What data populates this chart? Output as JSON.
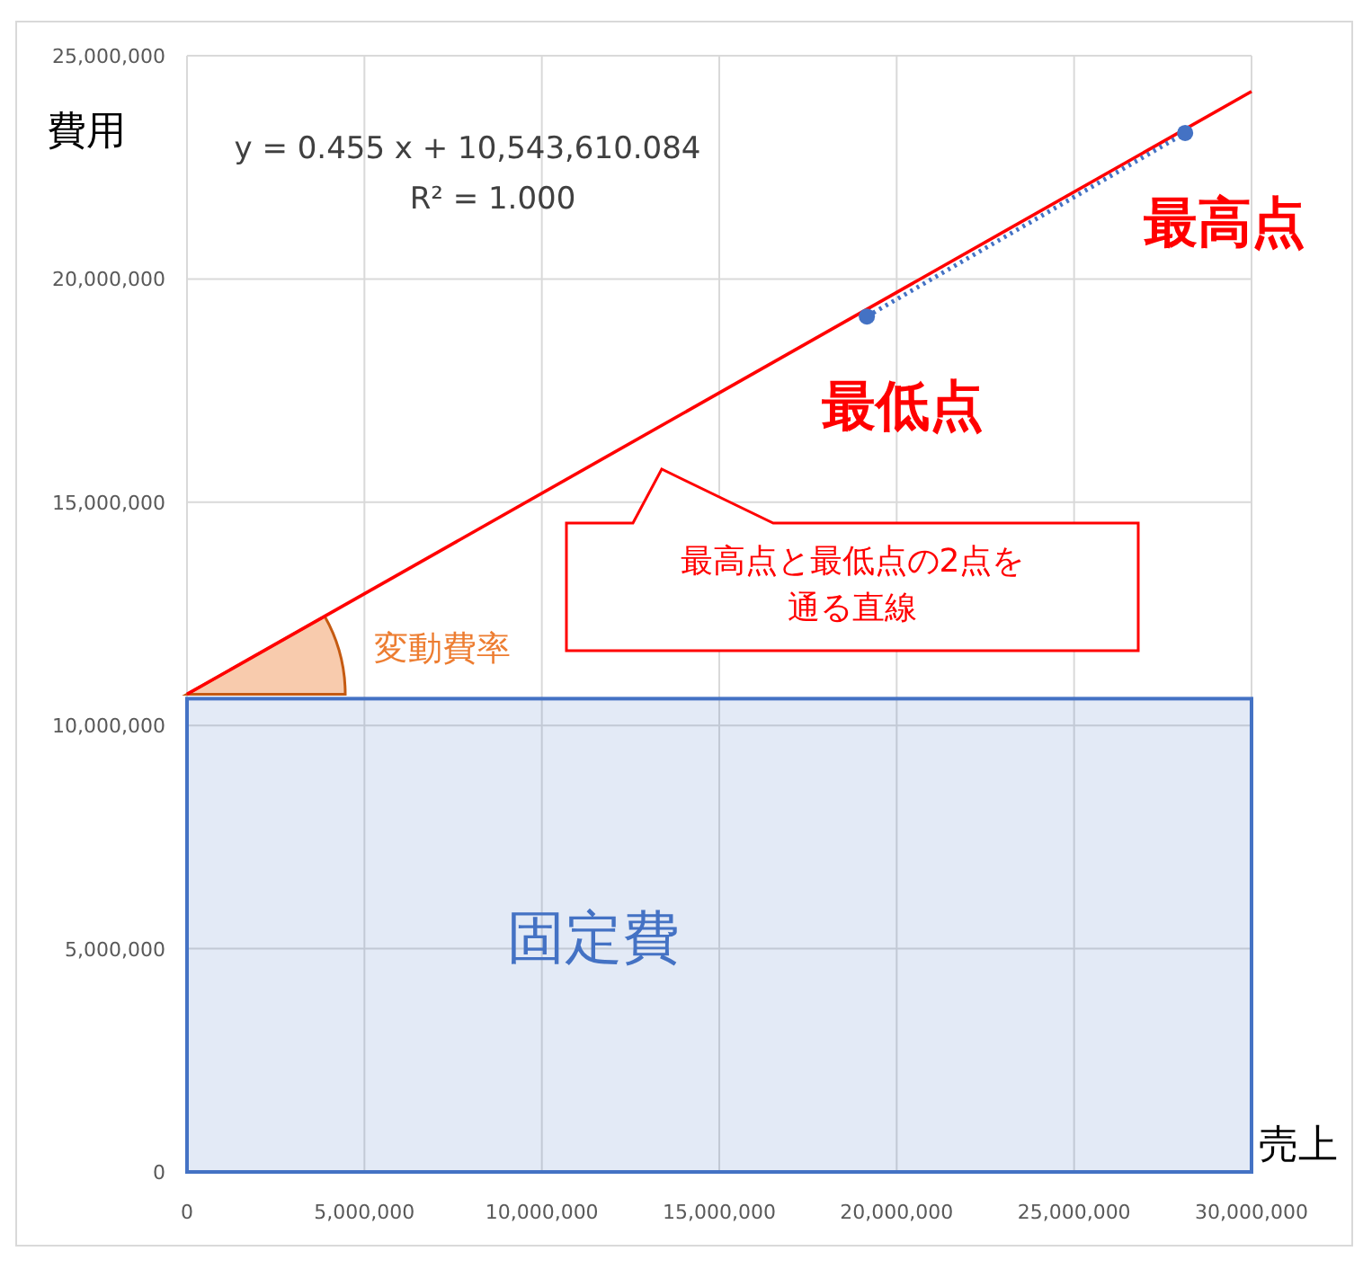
{
  "chart_data": {
    "type": "scatter",
    "xlabel": "売上",
    "ylabel": "費用",
    "xlim": [
      0,
      30000000
    ],
    "ylim": [
      0,
      25000000
    ],
    "xticks": [
      0,
      {
        "value": 5000000,
        "label": "5,000,000"
      },
      {
        "value": 10000000,
        "label": "10,000,000"
      },
      {
        "value": 15000000,
        "label": "15,000,000"
      },
      {
        "value": 20000000,
        "label": "20,000,000"
      },
      {
        "value": 25000000,
        "label": "25,000,000"
      },
      {
        "value": 30000000,
        "label": "30,000,000"
      }
    ],
    "yticks": [
      0,
      {
        "value": 5000000,
        "label": "5,000,000"
      },
      {
        "value": 10000000,
        "label": "10,000,000"
      },
      {
        "value": 15000000,
        "label": "15,000,000"
      },
      {
        "value": 20000000,
        "label": "20,000,000"
      },
      {
        "value": 25000000,
        "label": "25,000,000"
      }
    ],
    "grid": true,
    "series": [
      {
        "type": "line",
        "color": "#ff0000",
        "line_style": "solid",
        "x": [
          0,
          30000000
        ],
        "values": [
          10700000,
          24200000
        ]
      },
      {
        "type": "line",
        "color": "#4472c4",
        "line_style": "dotted",
        "x": [
          19160000,
          28130000
        ],
        "values": [
          19160000,
          23270000
        ]
      },
      {
        "color": "#4472c4",
        "marker": "circle",
        "x": [
          19160000,
          28130000
        ],
        "values": [
          19160000,
          23270000
        ]
      }
    ],
    "bands": [
      {
        "axis": "y",
        "from": 0,
        "to": 10600000,
        "label": "固定費",
        "color": "#4472c4"
      }
    ],
    "annotations": [
      "y = 0.455 x + 10,543,610.084",
      "R² = 1.000",
      {
        "text": "最低点",
        "x": 19160000,
        "y": 19160000
      },
      {
        "text": "最高点",
        "x": 28130000,
        "y": 23270000
      },
      "最高点と最低点の2点を",
      "通る直線",
      "変動費率"
    ]
  }
}
